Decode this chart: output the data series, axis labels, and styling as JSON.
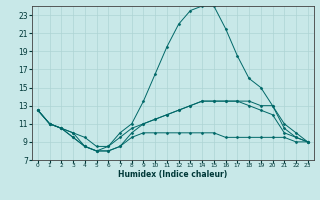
{
  "title": "",
  "xlabel": "Humidex (Indice chaleur)",
  "background_color": "#c8e8e8",
  "grid_color": "#aed4d4",
  "line_color": "#006868",
  "xlim": [
    -0.5,
    23.5
  ],
  "ylim": [
    7,
    24
  ],
  "xticks": [
    0,
    1,
    2,
    3,
    4,
    5,
    6,
    7,
    8,
    9,
    10,
    11,
    12,
    13,
    14,
    15,
    16,
    17,
    18,
    19,
    20,
    21,
    22,
    23
  ],
  "yticks": [
    7,
    9,
    11,
    13,
    15,
    17,
    19,
    21,
    23
  ],
  "series1_x": [
    0,
    1,
    2,
    3,
    4,
    5,
    6,
    7,
    8,
    9,
    10,
    11,
    12,
    13,
    14,
    15,
    16,
    17,
    18,
    19,
    20,
    21,
    22,
    23
  ],
  "series1_y": [
    12.5,
    11.0,
    10.5,
    10.0,
    8.5,
    8.0,
    8.5,
    9.5,
    10.5,
    11.0,
    11.5,
    12.0,
    12.5,
    13.0,
    13.5,
    13.5,
    13.5,
    13.5,
    13.5,
    13.0,
    13.0,
    10.5,
    9.5,
    9.0
  ],
  "series2_x": [
    0,
    1,
    2,
    3,
    4,
    5,
    6,
    7,
    8,
    9,
    10,
    11,
    12,
    13,
    14,
    15,
    16,
    17,
    18,
    19,
    20,
    21,
    22,
    23
  ],
  "series2_y": [
    12.5,
    11.0,
    10.5,
    9.5,
    8.5,
    8.0,
    8.0,
    8.5,
    10.0,
    11.0,
    11.5,
    12.0,
    12.5,
    13.0,
    13.5,
    13.5,
    13.5,
    13.5,
    13.0,
    12.5,
    12.0,
    10.0,
    9.5,
    9.0
  ],
  "series3_x": [
    0,
    1,
    2,
    3,
    4,
    5,
    6,
    7,
    8,
    9,
    10,
    11,
    12,
    13,
    14,
    15,
    16,
    17,
    18,
    19,
    20,
    21,
    22,
    23
  ],
  "series3_y": [
    12.5,
    11.0,
    10.5,
    10.0,
    9.5,
    8.5,
    8.5,
    10.0,
    11.0,
    13.5,
    16.5,
    19.5,
    22.0,
    23.5,
    24.0,
    24.0,
    21.5,
    18.5,
    16.0,
    15.0,
    13.0,
    11.0,
    10.0,
    9.0
  ],
  "series4_x": [
    0,
    1,
    2,
    3,
    4,
    5,
    6,
    7,
    8,
    9,
    10,
    11,
    12,
    13,
    14,
    15,
    16,
    17,
    18,
    19,
    20,
    21,
    22,
    23
  ],
  "series4_y": [
    12.5,
    11.0,
    10.5,
    9.5,
    8.5,
    8.0,
    8.0,
    8.5,
    9.5,
    10.0,
    10.0,
    10.0,
    10.0,
    10.0,
    10.0,
    10.0,
    9.5,
    9.5,
    9.5,
    9.5,
    9.5,
    9.5,
    9.0,
    9.0
  ]
}
